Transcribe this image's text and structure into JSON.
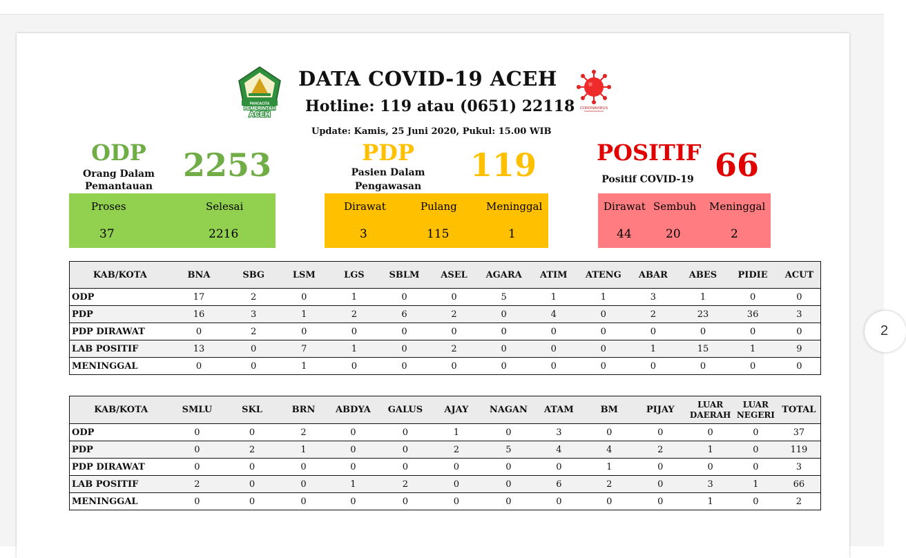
{
  "header": {
    "title": "DATA COVID-19 ACEH",
    "hotline": "Hotline: 119 atau (0651) 22118",
    "update": "Update: Kamis, 25 Juni 2020, Pukul: 15.00 WIB",
    "logo_left_text": [
      "PANCACITA",
      "PEMERINTAH",
      "ACEH"
    ],
    "logo_right_text": "CORONAVIRUS"
  },
  "page_indicator": "2",
  "odp": {
    "label": "ODP",
    "sub1": "Orang Dalam",
    "sub2": "Pemantauan",
    "total": "2253",
    "color": "#70ad47",
    "box_color": "#92d050",
    "items": [
      {
        "label": "Proses",
        "value": "37"
      },
      {
        "label": "Selesai",
        "value": "2216"
      }
    ]
  },
  "pdp": {
    "label": "PDP",
    "sub1": "Pasien Dalam",
    "sub2": "Pengawasan",
    "total": "119",
    "color": "#ffc000",
    "box_color": "#ffc000",
    "items": [
      {
        "label": "Dirawat",
        "value": "3"
      },
      {
        "label": "Pulang",
        "value": "115"
      },
      {
        "label": "Meninggal",
        "value": "1"
      }
    ]
  },
  "positif": {
    "label": "POSITIF",
    "sub1": "Positif COVID-19",
    "total": "66",
    "color": "#e00000",
    "box_color": "#ff7c80",
    "items": [
      {
        "label": "Dirawat",
        "value": "44"
      },
      {
        "label": "Sembuh",
        "value": "20"
      },
      {
        "label": "Meninggal",
        "value": "2"
      }
    ]
  },
  "table1": {
    "headers": [
      "KAB/KOTA",
      "BNA",
      "SBG",
      "LSM",
      "LGS",
      "SBLM",
      "ASEL",
      "AGARA",
      "ATIM",
      "ATENG",
      "ABAR",
      "ABES",
      "PIDIE",
      "ACUT"
    ],
    "rows": [
      [
        "ODP",
        "17",
        "2",
        "0",
        "1",
        "0",
        "0",
        "5",
        "1",
        "1",
        "3",
        "1",
        "0",
        "0"
      ],
      [
        "PDP",
        "16",
        "3",
        "1",
        "2",
        "6",
        "2",
        "0",
        "4",
        "0",
        "2",
        "23",
        "36",
        "3"
      ],
      [
        "PDP DIRAWAT",
        "0",
        "2",
        "0",
        "0",
        "0",
        "0",
        "0",
        "0",
        "0",
        "0",
        "0",
        "0",
        "0"
      ],
      [
        "LAB POSITIF",
        "13",
        "0",
        "7",
        "1",
        "0",
        "2",
        "0",
        "0",
        "0",
        "1",
        "15",
        "1",
        "9"
      ],
      [
        "MENINGGAL",
        "0",
        "0",
        "1",
        "0",
        "0",
        "0",
        "0",
        "0",
        "0",
        "0",
        "0",
        "0",
        "0"
      ]
    ]
  },
  "table2": {
    "headers": [
      "KAB/KOTA",
      "SMLU",
      "SKL",
      "BRN",
      "ABDYA",
      "GALUS",
      "AJAY",
      "NAGAN",
      "ATAM",
      "BM",
      "PIJAY",
      "LUAR DAERAH",
      "LUAR NEGERI",
      "TOTAL"
    ],
    "rows": [
      [
        "ODP",
        "0",
        "0",
        "2",
        "0",
        "0",
        "1",
        "0",
        "3",
        "0",
        "0",
        "0",
        "0",
        "37"
      ],
      [
        "PDP",
        "0",
        "2",
        "1",
        "0",
        "0",
        "2",
        "5",
        "4",
        "4",
        "2",
        "1",
        "0",
        "119"
      ],
      [
        "PDP DIRAWAT",
        "0",
        "0",
        "0",
        "0",
        "0",
        "0",
        "0",
        "0",
        "1",
        "0",
        "0",
        "0",
        "3"
      ],
      [
        "LAB POSITIF",
        "2",
        "0",
        "0",
        "1",
        "2",
        "0",
        "0",
        "6",
        "2",
        "0",
        "3",
        "1",
        "66"
      ],
      [
        "MENINGGAL",
        "0",
        "0",
        "0",
        "0",
        "0",
        "0",
        "0",
        "0",
        "0",
        "0",
        "1",
        "0",
        "2"
      ]
    ]
  }
}
